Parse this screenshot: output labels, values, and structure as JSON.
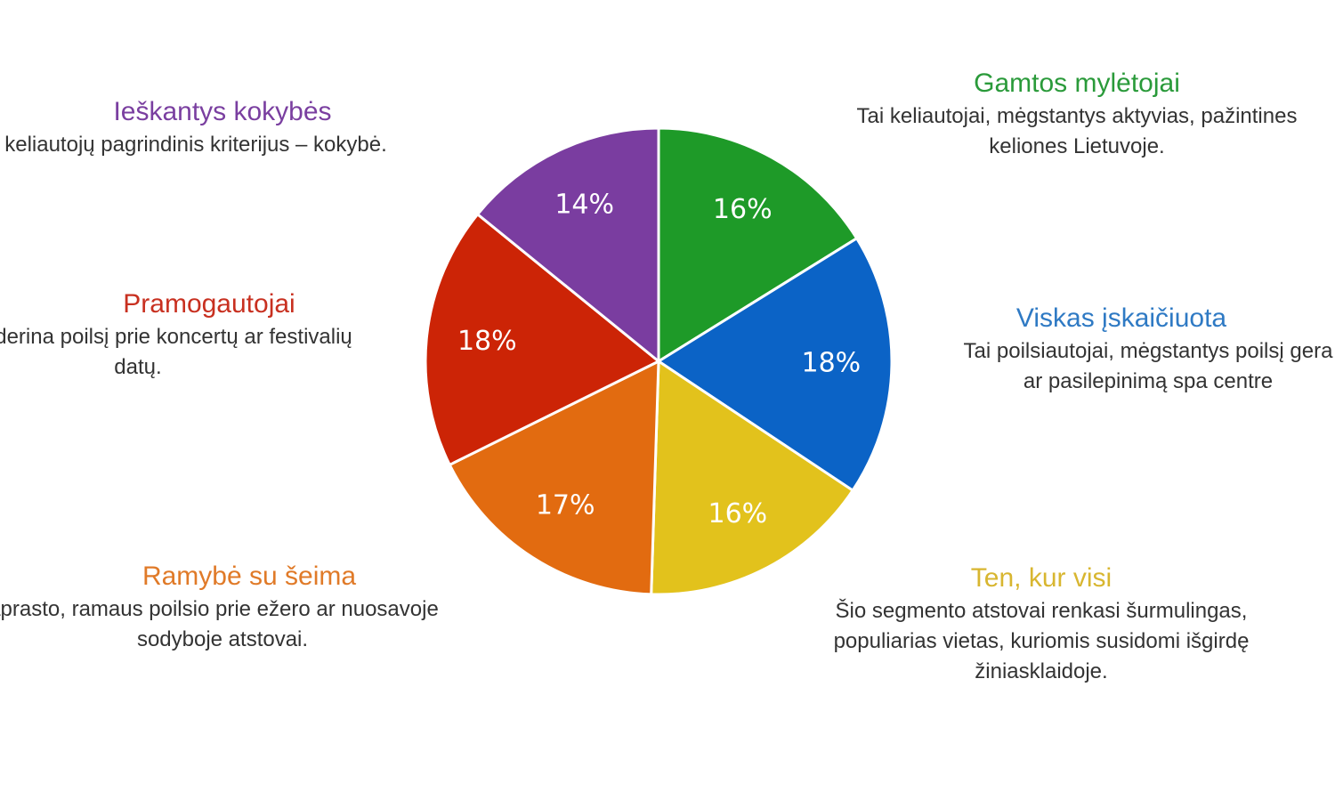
{
  "chart_data": {
    "type": "pie",
    "title": "",
    "slices": [
      {
        "label": "Gamtos mylėtojai",
        "value": 16,
        "label_text": "16%",
        "color": "#1e9a28",
        "description": [
          "Tai keliautojai, mėgstantys aktyvias, pažintines",
          "keliones Lietuvoje."
        ]
      },
      {
        "label": "Viskas įskaičiuota",
        "value": 18,
        "label_text": "18%",
        "color": "#0b63c6",
        "description": [
          "Tai poilsiautojai, mėgstantys poilsį gera",
          "ar pasilepinimą spa centre"
        ]
      },
      {
        "label": "Ten, kur visi",
        "value": 16,
        "label_text": "16%",
        "color": "#e2c21c",
        "description": [
          "Šio segmento atstovai renkasi šurmulingas,",
          "populiarias vietas, kuriomis susidomi išgirdę",
          "žiniasklaidoje."
        ]
      },
      {
        "label": "Ramybė su šeima",
        "value": 17,
        "label_text": "17%",
        "color": "#e26b10",
        "description": [
          "aprasto, ramaus poilsio prie ežero ar nuosavoje",
          "sodyboje atstovai."
        ]
      },
      {
        "label": "Pramogautojai",
        "value": 18,
        "label_text": "18%",
        "color": "#cc2406",
        "description": [
          "derina poilsį prie koncertų ar festivalių",
          "datų."
        ]
      },
      {
        "label": "Ieškantys kokybės",
        "value": 14,
        "label_text": "14%",
        "color": "#7a3da0",
        "description": [
          "ų keliautojų pagrindinis kriterijus – kokybė."
        ]
      }
    ]
  }
}
